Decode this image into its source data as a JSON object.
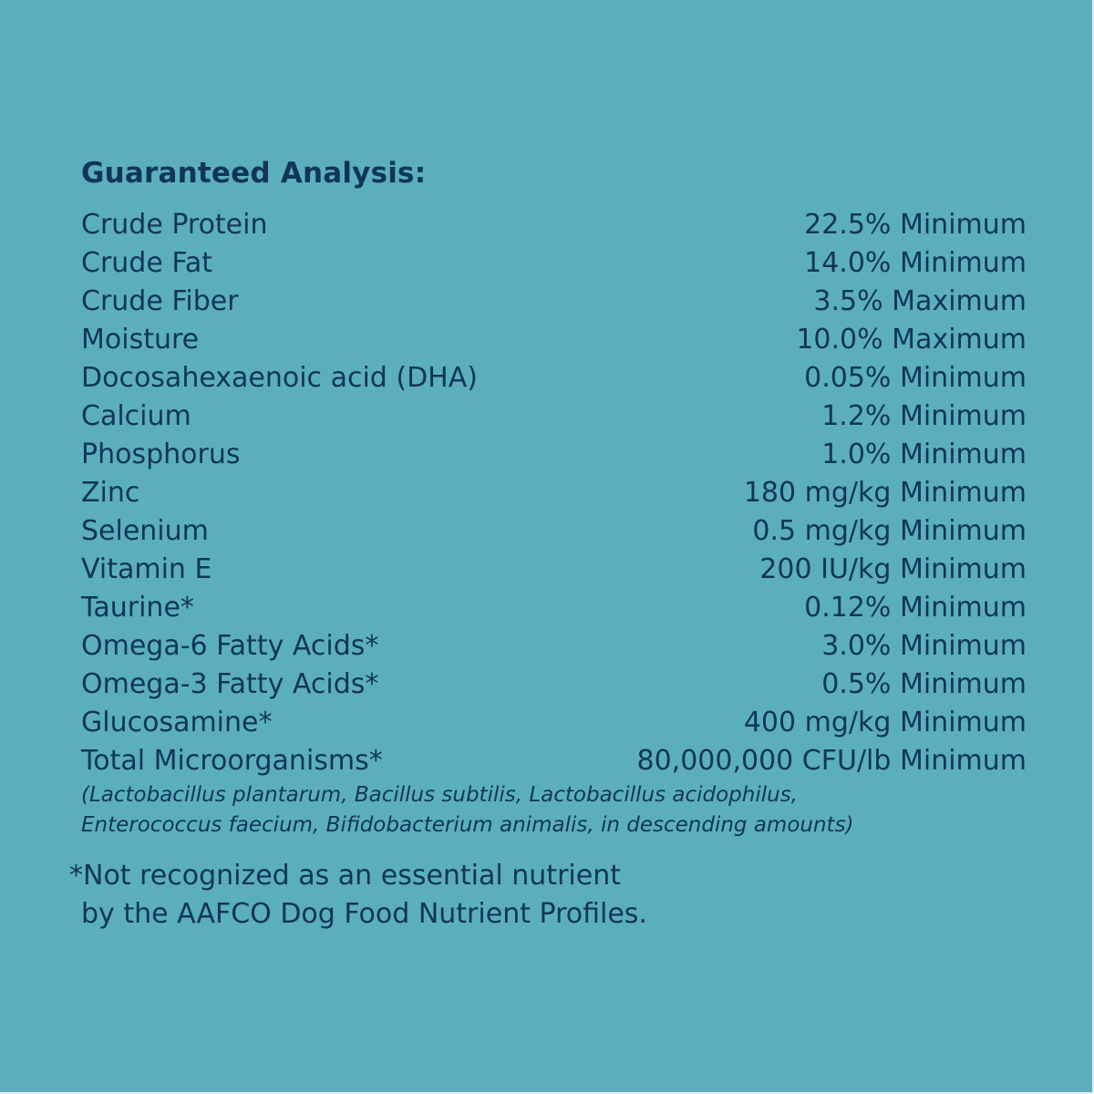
{
  "panel": {
    "background_color": "#5bafbc",
    "text_color": "#11355a"
  },
  "analysis": {
    "title": "Guaranteed Analysis:",
    "rows": [
      {
        "name": "Crude Protein",
        "value": "22.5% Minimum"
      },
      {
        "name": "Crude Fat",
        "value": "14.0% Minimum"
      },
      {
        "name": "Crude Fiber",
        "value": "3.5% Maximum"
      },
      {
        "name": "Moisture",
        "value": "10.0% Maximum"
      },
      {
        "name": "Docosahexaenoic acid (DHA)",
        "value": "0.05% Minimum"
      },
      {
        "name": "Calcium",
        "value": "1.2% Minimum"
      },
      {
        "name": "Phosphorus",
        "value": "1.0% Minimum"
      },
      {
        "name": "Zinc",
        "value": "180 mg/kg Minimum"
      },
      {
        "name": "Selenium",
        "value": "0.5 mg/kg Minimum"
      },
      {
        "name": "Vitamin E",
        "value": "200 IU/kg Minimum"
      },
      {
        "name": "Taurine*",
        "value": "0.12% Minimum"
      },
      {
        "name": "Omega-6 Fatty Acids*",
        "value": "3.0% Minimum"
      },
      {
        "name": "Omega-3 Fatty Acids*",
        "value": "0.5% Minimum"
      },
      {
        "name": "Glucosamine*",
        "value": "400 mg/kg Minimum"
      },
      {
        "name": "Total Microorganisms*",
        "value": "80,000,000 CFU/lb Minimum"
      }
    ],
    "strains_line1": "(Lactobacillus plantarum, Bacillus subtilis, Lactobacillus acidophilus,",
    "strains_line2": "Enterococcus faecium, Bifidobacterium animalis, in descending amounts)"
  },
  "footnote": {
    "line1": "*Not recognized as an essential nutrient",
    "line2": "by the AAFCO Dog Food Nutrient Profiles."
  }
}
